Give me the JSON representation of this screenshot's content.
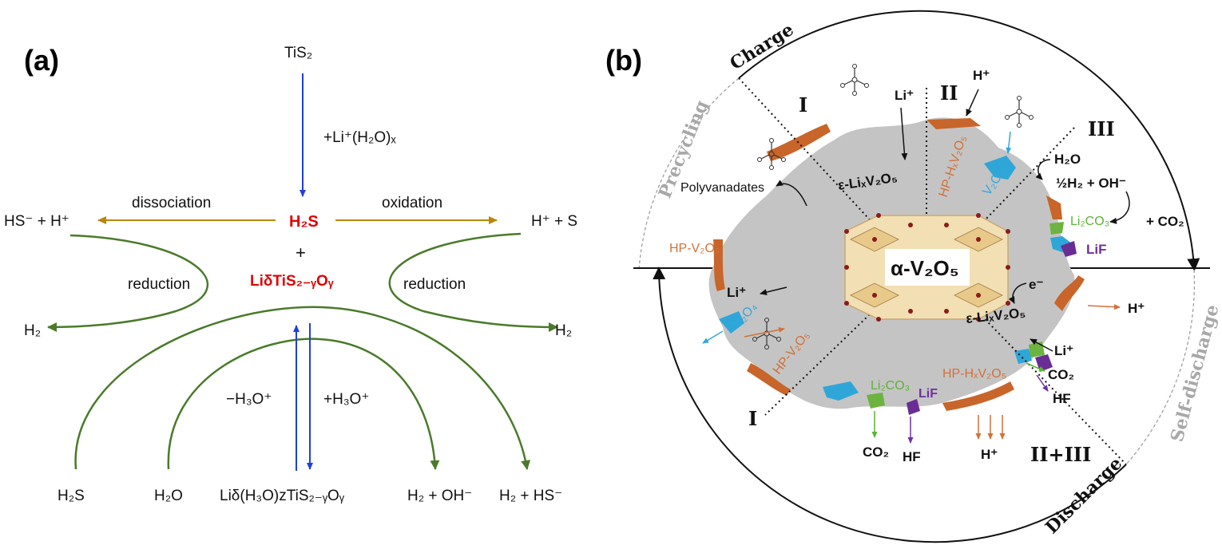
{
  "panel_a": {
    "label": "(a)",
    "top": "TiS₂",
    "li_water": "+Li⁺(H₂O)ₓ",
    "h2s": "H₂S",
    "plus": "+",
    "li_compound": "LiδTiS₂₋ᵧOᵧ",
    "dissociation": "dissociation",
    "oxidation": "oxidation",
    "hs_h": "HS⁻ + H⁺",
    "h_s": "H⁺ + S",
    "reduction_left": "reduction",
    "reduction_right": "reduction",
    "h2_left": "H₂",
    "h2_right": "H₂",
    "minus_h3o": "−H₃O⁺",
    "plus_h3o": "+H₃O⁺",
    "bottom": [
      "H₂S",
      "H₂O",
      "Liδ(H₃O)zTiS₂₋ᵧOᵧ",
      "H₂ + OH⁻",
      "H₂ + HS⁻"
    ]
  },
  "panel_b": {
    "label": "(b)",
    "charge": "Charge",
    "discharge": "Discharge",
    "precycling": "Precycling",
    "self_discharge": "Self-discharge",
    "center": "α-V₂O₅",
    "roman": {
      "q1": "I",
      "q2": "II",
      "q3": "III",
      "q4": "I",
      "q5": "II+III"
    },
    "species": {
      "li_top": "Li⁺",
      "h_top": "H⁺",
      "polyvanadates": "Polyvanadates",
      "eps_top": "ε-LiₓV₂O₅",
      "hp_hx_top": "HP-HₓV₂O₅",
      "v2o4_top": "V₂O₄",
      "h2o": "H₂O",
      "half_h2": "½H₂ + OH⁻",
      "li2co3_right": "Li₂CO₃",
      "co2_plus": "+ CO₂",
      "lif_right": "LiF",
      "hp_v2o5_left": "HP-V₂O₅",
      "li_left": "Li⁺",
      "v2o4_left": "V₂O₄",
      "hp_v2o5_lower": "HP-V₂O₅",
      "electron": "e⁻",
      "eps_right": "ε-LiₓV₂O₅",
      "h_right": "H⁺",
      "li_right": "Li⁺",
      "co2_right": "CO₂",
      "hf_right": "HF",
      "li2co3_bottom": "Li₂CO₃",
      "lif_bottom": "LiF",
      "hp_hx_bottom": "HP-HₓV₂O₅",
      "co2_bottom": "CO₂",
      "hf_bottom": "HF",
      "h_bottom": "H⁺"
    }
  },
  "colors": {
    "blue_arrow": "#1f3fe0",
    "gold_arrow": "#b8860b",
    "green_curve": "#4a7a2a",
    "red_text": "#e00000",
    "gray_region": "#c4c4c4",
    "orange_phase": "#c8652a",
    "blue_phase": "#2fa6d8",
    "green_phase": "#6db33f",
    "purple_phase": "#6a2d96"
  }
}
